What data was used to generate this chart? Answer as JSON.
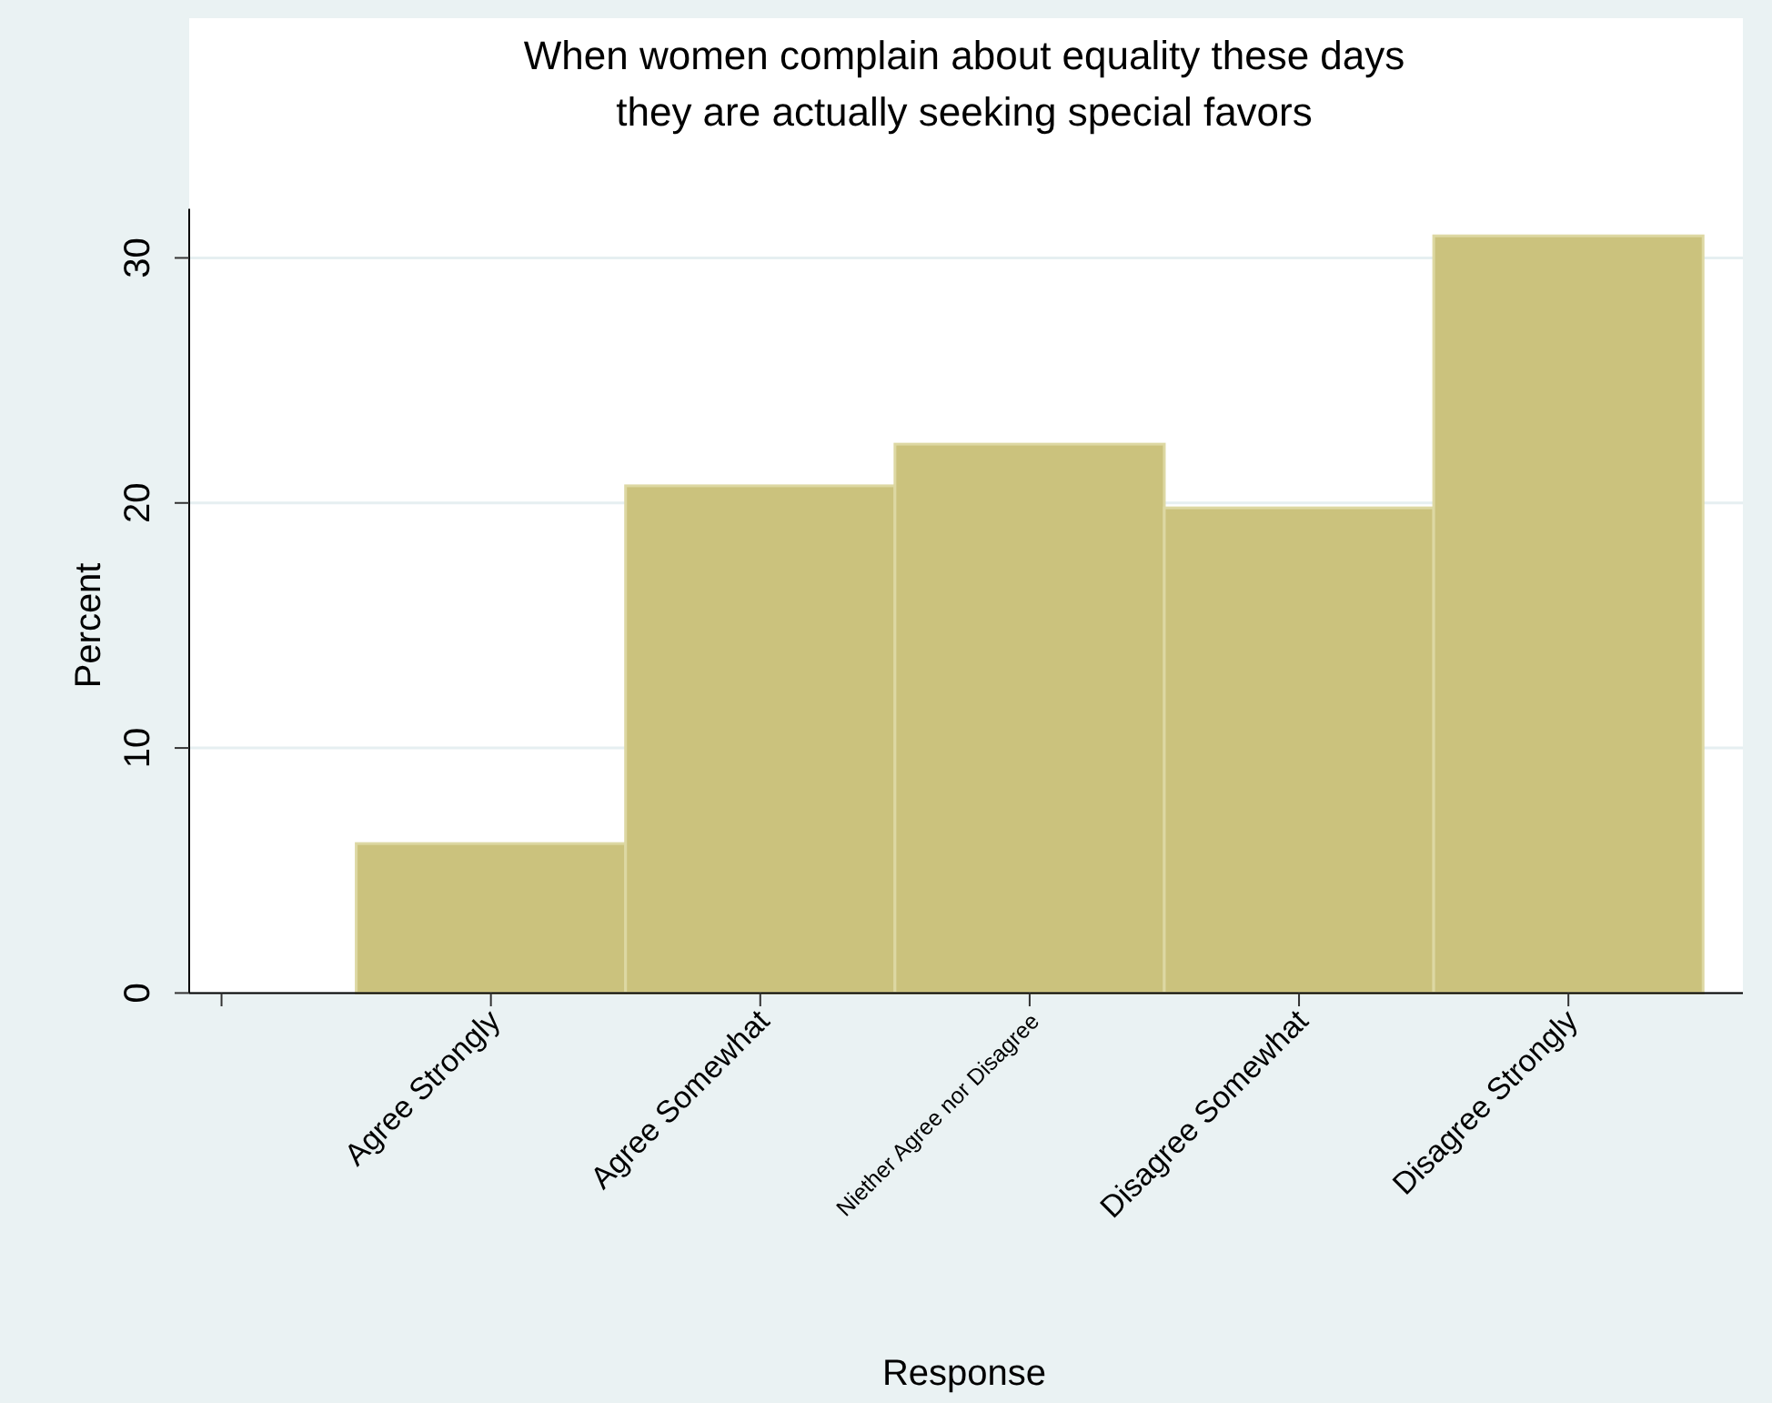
{
  "chart_data": {
    "type": "bar",
    "title": "When women complain about equality these days\nthey are actually seeking special favors",
    "xlabel": "Response",
    "ylabel": "Percent",
    "categories": [
      null,
      "Agree Strongly",
      "Agree Somewhat",
      "Niether Agree nor Disagree",
      "Disagree Somewhat",
      "Disagree Strongly"
    ],
    "values": [
      null,
      6.1,
      20.7,
      22.4,
      19.8,
      30.9
    ],
    "color": "#cbc27d",
    "ylim": [
      0,
      32
    ],
    "yticks": [
      0,
      10,
      20,
      30
    ],
    "grid": "y"
  }
}
